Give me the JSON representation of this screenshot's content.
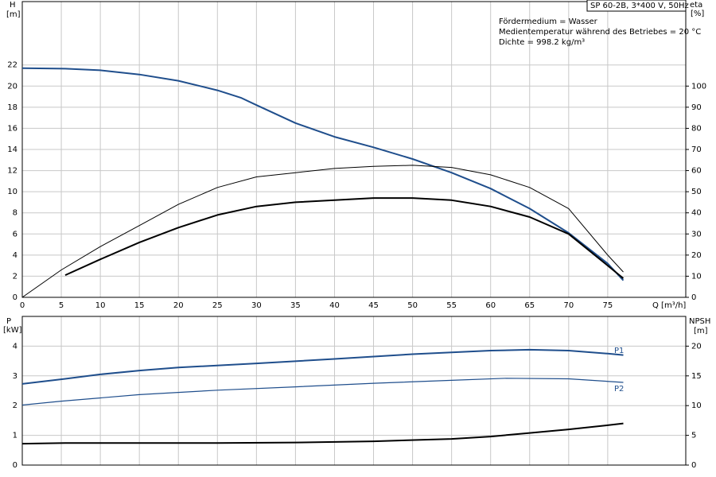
{
  "chart_data": [
    {
      "type": "line",
      "title": "SP 60-2B, 3*400 V, 50Hz",
      "annotations": [
        "Fördermedium = Wasser",
        "Medientemperatur während des Betriebes = 20 °C",
        "Dichte = 998.2 kg/m³"
      ],
      "y_label": "H",
      "y_unit": "[m]",
      "y2_label": "eta",
      "y2_unit": "[%]",
      "x_label": "Q [m³/h]",
      "xlim": [
        0,
        85
      ],
      "xticks": [
        0,
        5,
        10,
        15,
        20,
        25,
        30,
        35,
        40,
        45,
        50,
        55,
        60,
        65,
        70,
        75
      ],
      "ylim": [
        0,
        28
      ],
      "yticks": [
        0,
        2,
        4,
        6,
        8,
        10,
        12,
        14,
        16,
        18,
        20,
        22
      ],
      "y2lim": [
        0,
        140
      ],
      "y2ticks": [
        0,
        10,
        20,
        30,
        40,
        50,
        60,
        70,
        80,
        90,
        100
      ],
      "grid": true,
      "series": [
        {
          "color": "#1f4e8c",
          "line_width": 2,
          "x": [
            0,
            5.5,
            10,
            15,
            20,
            25,
            28,
            30,
            35,
            40,
            45,
            50,
            55,
            60,
            65,
            70,
            75,
            77
          ],
          "values": [
            21.7,
            21.65,
            21.5,
            21.1,
            20.5,
            19.6,
            18.9,
            18.2,
            16.5,
            15.2,
            14.2,
            13.1,
            11.8,
            10.3,
            8.4,
            6.1,
            3.2,
            1.6
          ]
        },
        {
          "color": "#000000",
          "line_width": 1,
          "axis": "y2",
          "x": [
            0,
            5,
            10,
            15,
            20,
            25,
            30,
            35,
            40,
            45,
            50,
            55,
            60,
            65,
            70,
            75,
            77
          ],
          "values": [
            0,
            13,
            24,
            34,
            44,
            52,
            57,
            59,
            61,
            62,
            62.5,
            61.5,
            58,
            52,
            42,
            20,
            12
          ]
        },
        {
          "color": "#000000",
          "line_width": 2,
          "axis": "y2",
          "x": [
            5.5,
            10,
            15,
            20,
            25,
            30,
            35,
            40,
            45,
            50,
            55,
            60,
            65,
            70,
            75,
            77
          ],
          "values": [
            10.5,
            18,
            26,
            33,
            39,
            43,
            45,
            46,
            47,
            47,
            46,
            43,
            38,
            30,
            15,
            9
          ]
        }
      ]
    },
    {
      "type": "line",
      "y_label": "P",
      "y_unit": "[kW]",
      "y2_label": "NPSH",
      "y2_unit": "[m]",
      "xlim": [
        0,
        85
      ],
      "ylim": [
        0,
        5
      ],
      "yticks": [
        0,
        1,
        2,
        3,
        4
      ],
      "y2lim": [
        0,
        25
      ],
      "y2ticks": [
        0,
        5,
        10,
        15,
        20
      ],
      "grid": true,
      "series": [
        {
          "name": "P1",
          "color": "#1f4e8c",
          "line_width": 2,
          "x": [
            0,
            5.5,
            10,
            15,
            20,
            30,
            40,
            50,
            60,
            65,
            70,
            75,
            77
          ],
          "values": [
            2.73,
            2.9,
            3.05,
            3.18,
            3.28,
            3.42,
            3.57,
            3.73,
            3.85,
            3.88,
            3.85,
            3.75,
            3.7
          ]
        },
        {
          "name": "P2",
          "color": "#1f4e8c",
          "line_width": 1.2,
          "x": [
            0,
            5,
            15,
            25,
            35,
            45,
            55,
            62,
            70,
            77
          ],
          "values": [
            2.02,
            2.15,
            2.37,
            2.52,
            2.63,
            2.75,
            2.85,
            2.92,
            2.9,
            2.78
          ]
        },
        {
          "color": "#000000",
          "line_width": 2,
          "axis": "y2",
          "x": [
            0,
            5.5,
            15,
            25,
            35,
            45,
            55,
            60,
            65,
            70,
            75,
            77
          ],
          "values": [
            3.6,
            3.7,
            3.7,
            3.7,
            3.8,
            4.0,
            4.4,
            4.8,
            5.4,
            6.0,
            6.7,
            7.0
          ]
        }
      ]
    }
  ]
}
